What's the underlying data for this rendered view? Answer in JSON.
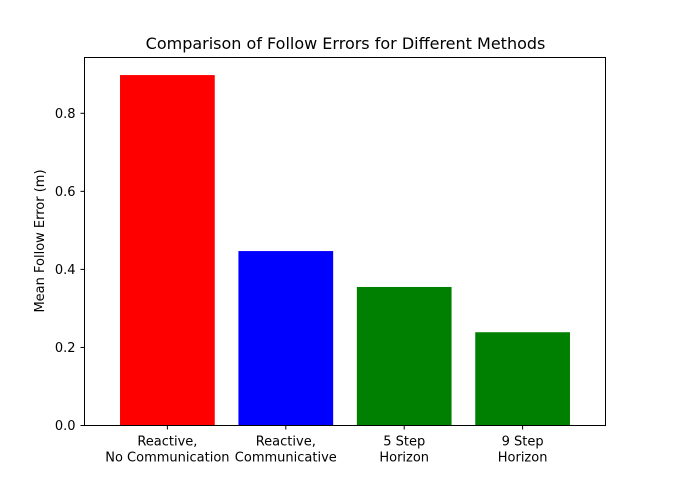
{
  "chart_data": {
    "type": "bar",
    "title": "Comparison of Follow Errors for Different Methods",
    "xlabel": "",
    "ylabel": "Mean Follow Error (m)",
    "categories": [
      [
        "Reactive,",
        "No Communication"
      ],
      [
        "Reactive,",
        "Communicative"
      ],
      [
        "5 Step",
        "Horizon"
      ],
      [
        "9 Step",
        "Horizon"
      ]
    ],
    "values": [
      0.898,
      0.447,
      0.355,
      0.239
    ],
    "colors": [
      "#ff0000",
      "#0000ff",
      "#008000",
      "#008000"
    ],
    "ylim": [
      0,
      0.943
    ],
    "yticks": [
      0.0,
      0.2,
      0.4,
      0.6,
      0.8
    ],
    "ytick_labels": [
      "0.0",
      "0.2",
      "0.4",
      "0.6",
      "0.8"
    ],
    "grid": false
  }
}
